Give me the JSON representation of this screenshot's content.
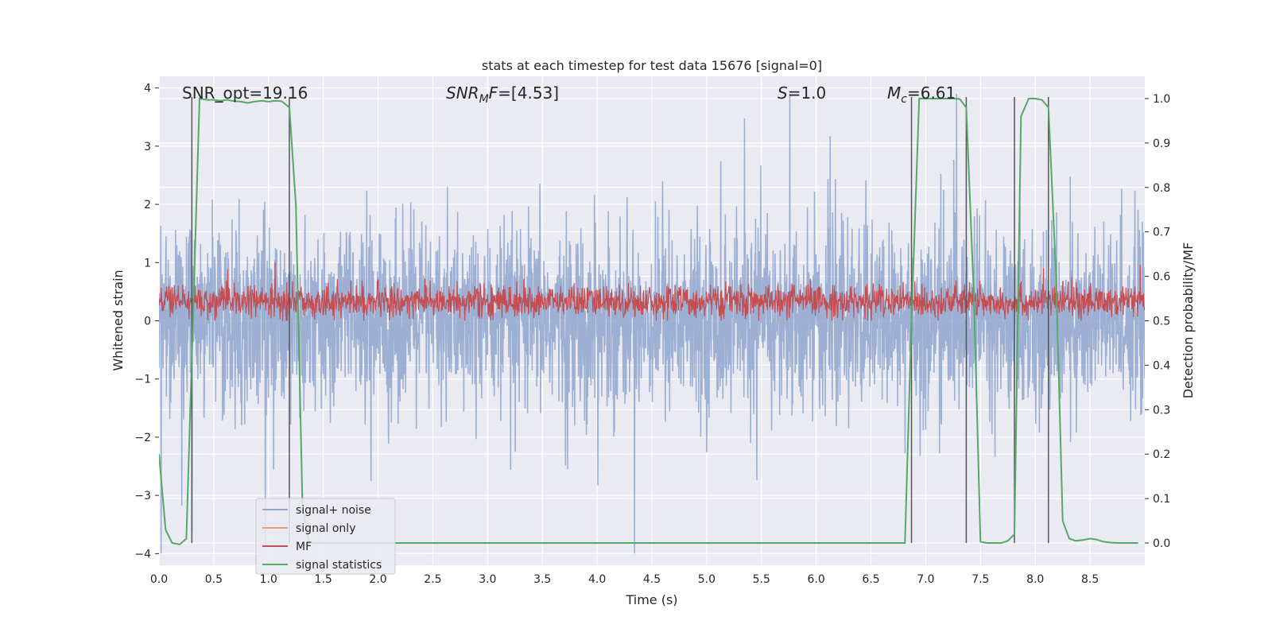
{
  "chart_data": {
    "type": "line",
    "title": "stats at each timestep for test data 15676 [signal=0]",
    "xlabel": "Time (s)",
    "ylabel": "Whitened strain",
    "y2label": "Detection probability/MF",
    "xlim": [
      0.0,
      9.0
    ],
    "ylim": [
      -4.2,
      4.2
    ],
    "y2lim": [
      -0.05,
      1.05
    ],
    "xticks": [
      "0.0",
      "0.5",
      "1.0",
      "1.5",
      "2.0",
      "2.5",
      "3.0",
      "3.5",
      "4.0",
      "4.5",
      "5.0",
      "5.5",
      "6.0",
      "6.5",
      "7.0",
      "7.5",
      "8.0",
      "8.5"
    ],
    "yticks": [
      "4",
      "3",
      "2",
      "1",
      "0",
      "−1",
      "−2",
      "−3",
      "−4"
    ],
    "y2ticks": [
      "1.0",
      "0.9",
      "0.8",
      "0.7",
      "0.6",
      "0.5",
      "0.4",
      "0.3",
      "0.2",
      "0.1",
      "0.0"
    ],
    "grid": true,
    "legend_position": "lower-left",
    "annotations": [
      {
        "parts": [
          {
            "t": "SNR_opt=19.16"
          }
        ]
      },
      {
        "parts": [
          {
            "t": "SNR",
            "i": true
          },
          {
            "t": "M",
            "i": true,
            "sub": true
          },
          {
            "t": "F",
            "i": true
          },
          {
            "t": "=[4.53]"
          }
        ]
      },
      {
        "parts": [
          {
            "t": "S",
            "i": true
          },
          {
            "t": "=1.0"
          }
        ]
      },
      {
        "parts": [
          {
            "t": "M",
            "i": true
          },
          {
            "t": "c",
            "i": true,
            "sub": true
          },
          {
            "t": "=6.61"
          }
        ]
      }
    ],
    "series": [
      {
        "name": "signal+ noise",
        "color": "#8fa6cf",
        "axis": "left",
        "description_range": [
          -4.0,
          3.9
        ]
      },
      {
        "name": "signal only",
        "color": "#e8a080",
        "axis": "left",
        "values": []
      },
      {
        "name": "MF",
        "color": "#c44e52",
        "axis": "left",
        "range_approx": [
          0.0,
          1.0
        ]
      },
      {
        "name": "signal statistics",
        "color": "#55a868",
        "axis": "right",
        "points": [
          [
            0.0,
            0.2
          ],
          [
            0.06,
            0.03
          ],
          [
            0.12,
            0.0
          ],
          [
            0.19,
            -0.003
          ],
          [
            0.25,
            0.01
          ],
          [
            0.31,
            0.5
          ],
          [
            0.37,
            1.0
          ],
          [
            0.44,
            0.997
          ],
          [
            0.5,
            0.997
          ],
          [
            0.56,
            0.995
          ],
          [
            0.62,
            0.997
          ],
          [
            0.69,
            0.994
          ],
          [
            0.75,
            0.993
          ],
          [
            0.81,
            0.99
          ],
          [
            0.87,
            0.993
          ],
          [
            0.94,
            0.995
          ],
          [
            1.0,
            0.993
          ],
          [
            1.06,
            0.995
          ],
          [
            1.12,
            0.994
          ],
          [
            1.19,
            0.98
          ],
          [
            1.25,
            0.76
          ],
          [
            1.31,
            0.08
          ],
          [
            1.37,
            0.0
          ],
          [
            1.5,
            0.0
          ],
          [
            2.0,
            0.0
          ],
          [
            3.0,
            0.0
          ],
          [
            4.0,
            0.0
          ],
          [
            5.0,
            0.0
          ],
          [
            6.0,
            0.0
          ],
          [
            6.5,
            0.0
          ],
          [
            6.81,
            0.0
          ],
          [
            6.87,
            0.5
          ],
          [
            6.94,
            1.0
          ],
          [
            7.0,
            1.0
          ],
          [
            7.06,
            1.0
          ],
          [
            7.12,
            1.0
          ],
          [
            7.19,
            1.0
          ],
          [
            7.25,
            1.0
          ],
          [
            7.31,
            0.999
          ],
          [
            7.37,
            0.98
          ],
          [
            7.44,
            0.55
          ],
          [
            7.5,
            0.003
          ],
          [
            7.56,
            0.0
          ],
          [
            7.62,
            0.0
          ],
          [
            7.69,
            0.0
          ],
          [
            7.75,
            0.005
          ],
          [
            7.81,
            0.02
          ],
          [
            7.87,
            0.96
          ],
          [
            7.94,
            1.0
          ],
          [
            8.0,
            1.0
          ],
          [
            8.06,
            0.997
          ],
          [
            8.12,
            0.98
          ],
          [
            8.19,
            0.6
          ],
          [
            8.25,
            0.05
          ],
          [
            8.31,
            0.01
          ],
          [
            8.37,
            0.005
          ],
          [
            8.44,
            0.007
          ],
          [
            8.5,
            0.01
          ],
          [
            8.56,
            0.008
          ],
          [
            8.62,
            0.003
          ],
          [
            8.69,
            0.001
          ],
          [
            8.75,
            0.0
          ],
          [
            8.81,
            0.0
          ],
          [
            8.87,
            0.0
          ],
          [
            8.94,
            0.0
          ]
        ]
      }
    ],
    "vlines": [
      0.3,
      1.19,
      6.87,
      7.37,
      7.81,
      8.12
    ]
  }
}
